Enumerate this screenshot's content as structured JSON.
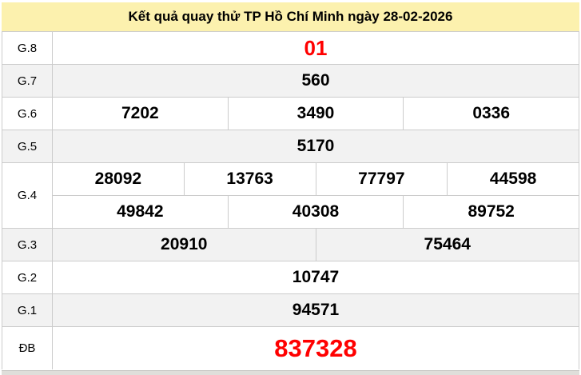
{
  "header": {
    "title": "Kết quả quay thử TP Hồ Chí Minh ngày 28-02-2026"
  },
  "colors": {
    "title_bar_background": "#fcf1ae",
    "highlight_red": "#ff0000",
    "zebra_row_gray": "#f2f2f2",
    "cell_border_gray": "#cccccc",
    "value_text": "#000000"
  },
  "results": {
    "rows": [
      {
        "label": "G.8",
        "lines": [
          [
            "01"
          ]
        ],
        "emphasis": "red-large"
      },
      {
        "label": "G.7",
        "lines": [
          [
            "560"
          ]
        ]
      },
      {
        "label": "G.6",
        "lines": [
          [
            "7202",
            "3490",
            "0336"
          ]
        ]
      },
      {
        "label": "G.5",
        "lines": [
          [
            "5170"
          ]
        ]
      },
      {
        "label": "G.4",
        "lines": [
          [
            "28092",
            "13763",
            "77797",
            "44598"
          ],
          [
            "49842",
            "40308",
            "89752"
          ]
        ]
      },
      {
        "label": "G.3",
        "lines": [
          [
            "20910",
            "75464"
          ]
        ]
      },
      {
        "label": "G.2",
        "lines": [
          [
            "10747"
          ]
        ]
      },
      {
        "label": "G.1",
        "lines": [
          [
            "94571"
          ]
        ]
      },
      {
        "label": "ĐB",
        "lines": [
          [
            "837328"
          ]
        ],
        "emphasis": "red-xlarge"
      }
    ]
  }
}
